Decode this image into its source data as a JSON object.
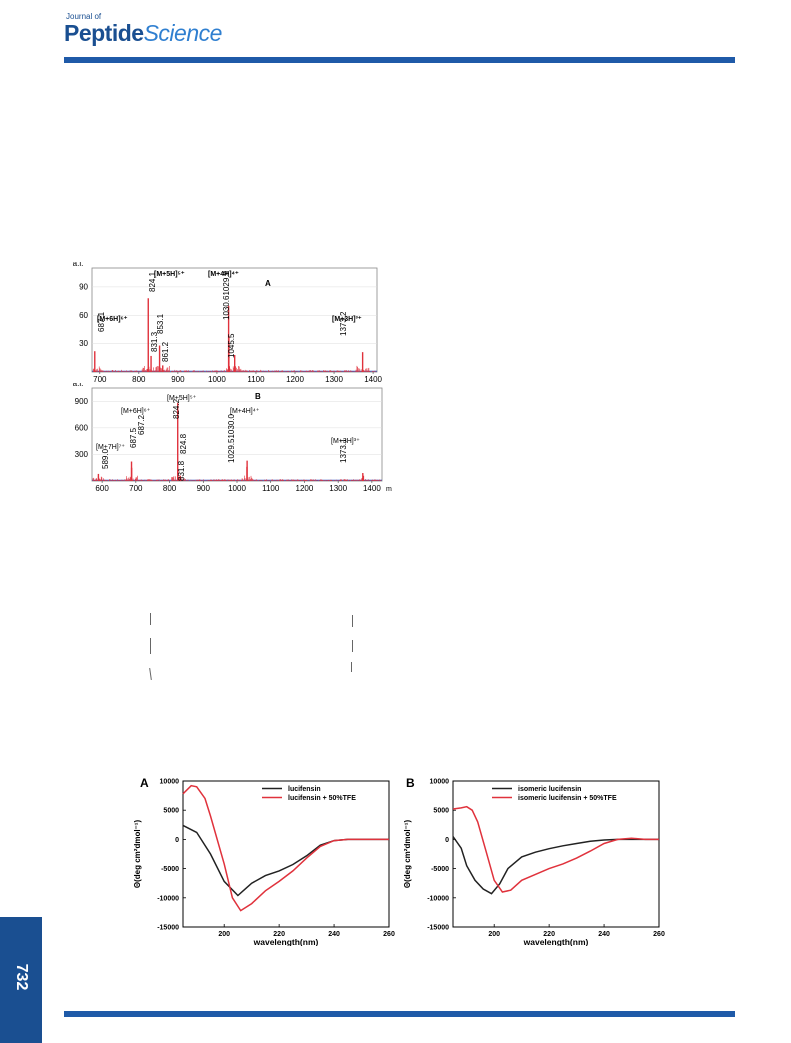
{
  "journal": {
    "small": "Journal of",
    "main_a": "Pept",
    "main_b": "i",
    "main_c": "de",
    "main_d": "Science"
  },
  "page_number": "732",
  "colors": {
    "brand_blue": "#1f5aa8",
    "trace_red": "#e0323c",
    "trace_black": "#222222",
    "baseline_blue": "#3050c0"
  },
  "chart_data": [
    {
      "type": "line",
      "panel": "A",
      "ylabel": "a.i.",
      "xlim": [
        680,
        1410
      ],
      "ylim": [
        0,
        110
      ],
      "xticks": [
        700,
        800,
        900,
        1000,
        1100,
        1200,
        1300,
        1400
      ],
      "yticks": [
        30,
        60,
        90
      ],
      "peaks": [
        {
          "x": 687.1,
          "y": 22
        },
        {
          "x": 824.1,
          "y": 78
        },
        {
          "x": 831.3,
          "y": 17
        },
        {
          "x": 853.1,
          "y": 28
        },
        {
          "x": 861.2,
          "y": 7
        },
        {
          "x": 1030.6,
          "y": 38
        },
        {
          "x": 1029.9,
          "y": 70
        },
        {
          "x": 1045.5,
          "y": 18
        },
        {
          "x": 1373.2,
          "y": 21
        }
      ],
      "peak_labels": [
        "687.1",
        "824.1",
        "831.3",
        "853.1",
        "861.2",
        "1030.61029.9",
        "1045.5",
        "1373.2"
      ],
      "ion_labels": [
        "[M+6H]⁶⁺",
        "[M+5H]⁵⁺",
        "[M+4H]⁴⁺",
        "[M+3H]³⁺"
      ]
    },
    {
      "type": "line",
      "panel": "B",
      "ylabel": "a.i.",
      "xlabel": "m/z",
      "xlim": [
        570,
        1430
      ],
      "ylim": [
        0,
        1050
      ],
      "xticks": [
        600,
        700,
        800,
        900,
        1000,
        1100,
        1200,
        1300,
        1400
      ],
      "yticks": [
        300,
        600,
        900
      ],
      "peaks": [
        {
          "x": 589.0,
          "y": 80
        },
        {
          "x": 687.5,
          "y": 150
        },
        {
          "x": 687.2,
          "y": 220
        },
        {
          "x": 824.2,
          "y": 880
        },
        {
          "x": 824.8,
          "y": 120
        },
        {
          "x": 831.8,
          "y": 60
        },
        {
          "x": 1029.5,
          "y": 160
        },
        {
          "x": 1030.0,
          "y": 230
        },
        {
          "x": 1373.1,
          "y": 90
        }
      ],
      "peak_labels": [
        "589.0",
        "687.5",
        "687.2",
        "824.2",
        "824.8",
        "831.8",
        "1029.51030.0",
        "1373.1"
      ],
      "ion_labels": [
        "[M+7H]⁷⁺",
        "[M+6H]⁶⁺",
        "[M+5H]⁵⁺",
        "[M+4H]⁴⁺",
        "[M+3H]³⁺"
      ]
    },
    {
      "type": "line",
      "panel": "A",
      "xlabel": "wavelength(nm)",
      "ylabel": "Θ(deg cm²dmol⁻¹)",
      "xlim": [
        185,
        260
      ],
      "ylim": [
        -15000,
        10000
      ],
      "xticks": [
        200,
        220,
        240,
        260
      ],
      "yticks": [
        10000,
        5000,
        0,
        -5000,
        -10000,
        -15000
      ],
      "series": [
        {
          "name": "lucifensin",
          "color": "#222222",
          "x": [
            185,
            190,
            195,
            200,
            205,
            210,
            215,
            220,
            225,
            230,
            235,
            240,
            245,
            250,
            255,
            260
          ],
          "y": [
            2400,
            1200,
            -2500,
            -7200,
            -9600,
            -7500,
            -6200,
            -5400,
            -4300,
            -2800,
            -1000,
            -200,
            0,
            0,
            0,
            0
          ]
        },
        {
          "name": "lucifensin + 50%TFE",
          "color": "#e0323c",
          "x": [
            185,
            188,
            190,
            193,
            195,
            200,
            203,
            206,
            210,
            215,
            220,
            225,
            230,
            235,
            240,
            245,
            250,
            255,
            260
          ],
          "y": [
            7800,
            9200,
            9000,
            7000,
            4000,
            -4200,
            -10000,
            -12200,
            -11000,
            -8800,
            -7200,
            -5400,
            -3200,
            -1200,
            -200,
            0,
            0,
            0,
            0
          ]
        }
      ]
    },
    {
      "type": "line",
      "panel": "B",
      "xlabel": "wavelength(nm)",
      "ylabel": "Θ(deg cm²dmol⁻¹)",
      "xlim": [
        185,
        260
      ],
      "ylim": [
        -15000,
        10000
      ],
      "xticks": [
        200,
        220,
        240,
        260
      ],
      "yticks": [
        10000,
        5000,
        0,
        -5000,
        -10000,
        -15000
      ],
      "series": [
        {
          "name": "isomeric lucifensin",
          "color": "#222222",
          "x": [
            185,
            188,
            190,
            193,
            196,
            199,
            202,
            205,
            210,
            215,
            220,
            225,
            230,
            235,
            240,
            245,
            250,
            255,
            260
          ],
          "y": [
            500,
            -1500,
            -4500,
            -7000,
            -8500,
            -9300,
            -7600,
            -5000,
            -3000,
            -2200,
            -1600,
            -1100,
            -700,
            -300,
            -100,
            0,
            0,
            0,
            0
          ]
        },
        {
          "name": "isomeric lucifensin + 50%TFE",
          "color": "#e0323c",
          "x": [
            185,
            188,
            190,
            192,
            194,
            197,
            200,
            203,
            206,
            210,
            215,
            220,
            225,
            230,
            235,
            240,
            245,
            250,
            255,
            260
          ],
          "y": [
            5200,
            5400,
            5600,
            5000,
            3000,
            -2000,
            -7000,
            -9000,
            -8700,
            -7000,
            -6000,
            -5000,
            -4200,
            -3200,
            -2000,
            -700,
            0,
            200,
            0,
            0
          ]
        }
      ]
    }
  ]
}
